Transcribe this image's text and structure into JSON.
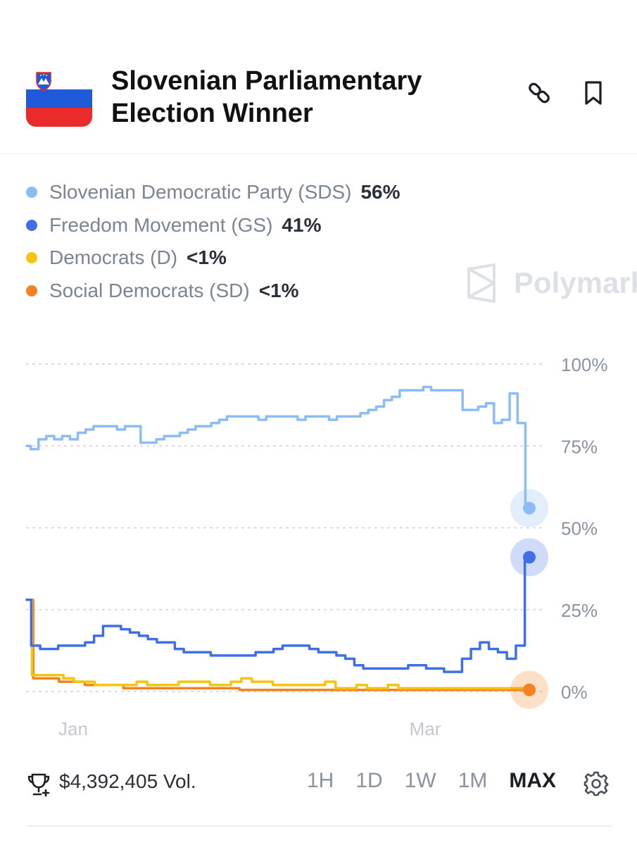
{
  "header": {
    "title": "Slovenian Parliamentary Election Winner",
    "flag_colors": [
      "#ffffff",
      "#1f5bd9",
      "#ea2b2b"
    ],
    "icons": [
      "link-icon",
      "bookmark-icon"
    ]
  },
  "legend": [
    {
      "name": "Slovenian Democratic Party (SDS)",
      "value": "56%",
      "color": "#8cbcf5"
    },
    {
      "name": "Freedom Movement (GS)",
      "value": "41%",
      "color": "#3f6ee6"
    },
    {
      "name": "Democrats (D)",
      "value": "<1%",
      "color": "#f5c40d"
    },
    {
      "name": "Social Democrats (SD)",
      "value": "<1%",
      "color": "#f58220"
    }
  ],
  "watermark": "Polymark",
  "chart_data": {
    "type": "line",
    "x_ticks": [
      "Jan",
      "Mar"
    ],
    "y_ticks": [
      "100%",
      "75%",
      "50%",
      "25%",
      "0%"
    ],
    "ylim": [
      0,
      100
    ],
    "grid": "dotted",
    "series": [
      {
        "name": "Slovenian Democratic Party (SDS)",
        "color": "#8cbcf5",
        "values": [
          75,
          74,
          77,
          78,
          77,
          78,
          77,
          79,
          80,
          81,
          81,
          81,
          80,
          81,
          81,
          76,
          76,
          77,
          78,
          78,
          79,
          80,
          81,
          81,
          82,
          83,
          84,
          84,
          84,
          84,
          83,
          84,
          84,
          84,
          84,
          83,
          84,
          84,
          84,
          83,
          84,
          84,
          84,
          85,
          86,
          87,
          89,
          90,
          92,
          92,
          92,
          93,
          92,
          92,
          92,
          92,
          86,
          86,
          87,
          88,
          82,
          83,
          91,
          82,
          56
        ]
      },
      {
        "name": "Freedom Movement (GS)",
        "color": "#3f6ee6",
        "values": [
          28,
          14,
          13,
          13,
          14,
          14,
          14,
          15,
          17,
          20,
          20,
          19,
          18,
          17,
          16,
          15,
          15,
          13,
          12,
          12,
          12,
          11,
          11,
          11,
          11,
          11,
          12,
          12,
          13,
          14,
          14,
          14,
          13,
          12,
          12,
          11,
          10,
          8,
          7,
          7,
          7,
          7,
          7,
          8,
          8,
          7,
          7,
          6,
          6,
          10,
          13,
          15,
          13,
          12,
          10,
          14,
          41
        ]
      },
      {
        "name": "Democrats (D)",
        "color": "#f5c40d",
        "values": [
          28,
          5,
          5,
          5,
          4,
          3,
          3,
          2,
          2,
          2,
          2,
          3,
          2,
          2,
          2,
          3,
          3,
          3,
          2,
          2,
          3,
          4,
          3,
          3,
          2,
          2,
          2,
          2,
          2,
          3,
          1,
          1,
          2,
          1,
          1,
          2,
          1,
          1,
          1,
          1,
          1,
          1,
          1,
          1,
          1,
          1,
          1,
          1,
          0.5
        ]
      },
      {
        "name": "Social Democrats (SD)",
        "color": "#f58220",
        "values": [
          28,
          4,
          4,
          3,
          3,
          2,
          2,
          2,
          1,
          1,
          1,
          1,
          1,
          1,
          1,
          1,
          1,
          0.5,
          0.5,
          0.5,
          0.5,
          0.5,
          0.5,
          0.5,
          0.5,
          0.5,
          0.5,
          0.5,
          0.5,
          0.5,
          0.5,
          0.5,
          0.5,
          0.5,
          0.5,
          0.5,
          0.5,
          0.5,
          0.5,
          0.5
        ]
      }
    ]
  },
  "footer": {
    "volume": "$4,392,405 Vol.",
    "ranges": [
      "1H",
      "1D",
      "1W",
      "1M",
      "MAX"
    ],
    "active_range": "MAX"
  }
}
